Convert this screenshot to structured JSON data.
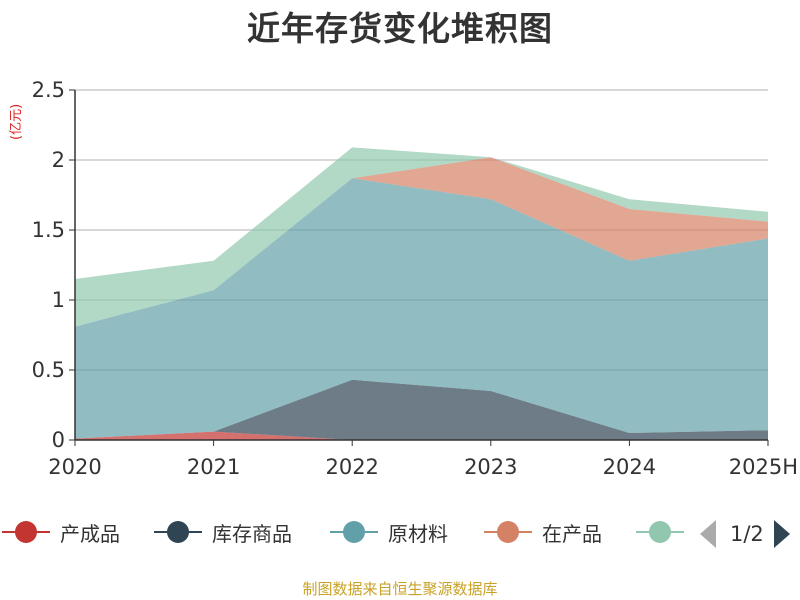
{
  "title": "近年存货变化堆积图",
  "unit_label": "(亿元)",
  "source": "制图数据来自恒生聚源数据库",
  "chart_data": {
    "type": "area",
    "stacked": true,
    "title": "近年存货变化堆积图",
    "ylabel": "(亿元)",
    "x": [
      "2020",
      "2021",
      "2022",
      "2023",
      "2024",
      "2025H"
    ],
    "y_ticks": [
      "0",
      "0.5",
      "1",
      "1.5",
      "2",
      "2.5"
    ],
    "ylim": [
      0,
      2.5
    ],
    "grid": true,
    "legend_position": "bottom",
    "series": [
      {
        "name": "产成品",
        "color": "#c23531",
        "values": [
          0.01,
          0.06,
          0.0,
          0.0,
          0.0,
          0.0
        ]
      },
      {
        "name": "库存商品",
        "color": "#2f4554",
        "values": [
          0.0,
          0.0,
          0.43,
          0.35,
          0.05,
          0.07
        ]
      },
      {
        "name": "原材料",
        "color": "#61a0a8",
        "values": [
          0.8,
          1.01,
          1.44,
          1.37,
          1.23,
          1.37
        ]
      },
      {
        "name": "在产品",
        "color": "#d48265",
        "values": [
          0.0,
          0.0,
          0.0,
          0.3,
          0.37,
          0.12
        ]
      },
      {
        "name": "",
        "color": "#91c7ae",
        "values": [
          0.34,
          0.21,
          0.22,
          0.0,
          0.07,
          0.07
        ]
      }
    ]
  },
  "legend": {
    "items": [
      {
        "label": "产成品",
        "color": "#c23531"
      },
      {
        "label": "库存商品",
        "color": "#2f4554"
      },
      {
        "label": "原材料",
        "color": "#61a0a8"
      },
      {
        "label": "在产品",
        "color": "#d48265"
      },
      {
        "label": "",
        "color": "#91c7ae"
      }
    ],
    "page_text": "1/2"
  }
}
